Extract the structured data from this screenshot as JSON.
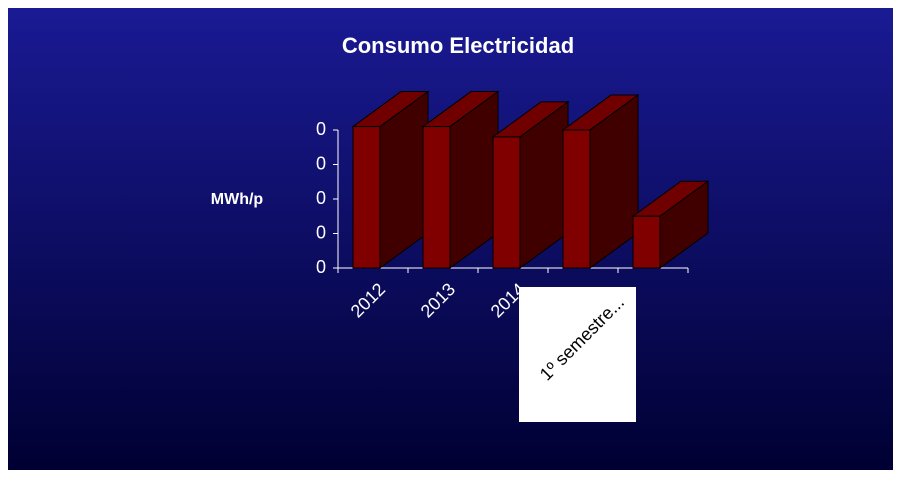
{
  "chart_data": {
    "type": "bar3d",
    "title": "Consumo Electricidad",
    "y_label": "MWh/p",
    "categories": [
      "2012",
      "2013",
      "2014",
      null,
      "1º semestre..."
    ],
    "values": [
      0.41,
      0.41,
      0.38,
      0.4,
      0.15
    ],
    "color": "#800000",
    "ylim": [
      0,
      0.4
    ],
    "yticks": [
      {
        "value": 0,
        "label": "0"
      },
      {
        "value": 0.1,
        "label": "0"
      },
      {
        "value": 0.2,
        "label": "0"
      },
      {
        "value": 0.3,
        "label": "0"
      },
      {
        "value": 0.4,
        "label": "0"
      }
    ]
  }
}
